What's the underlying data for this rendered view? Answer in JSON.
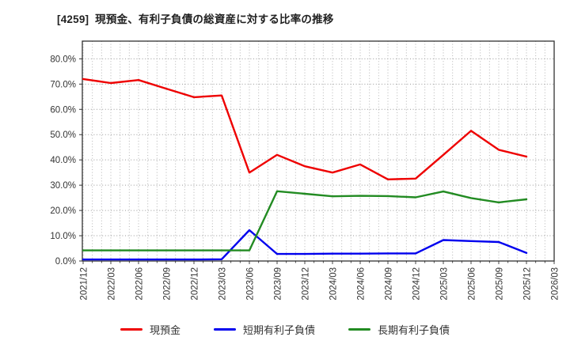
{
  "title": "[4259]  現預金、有利子負債の総資産に対する比率の推移",
  "chart_data": {
    "type": "line",
    "title": "[4259]  現預金、有利子負債の総資産に対する比率の推移",
    "categories": [
      "2021/12",
      "2022/03",
      "2022/06",
      "2022/09",
      "2022/12",
      "2023/03",
      "2023/06",
      "2023/09",
      "2023/12",
      "2024/03",
      "2024/06",
      "2024/09",
      "2024/12",
      "2025/03",
      "2025/06",
      "2025/09",
      "2025/12",
      "2026/03"
    ],
    "series": [
      {
        "name": "現預金",
        "color": "#ee0000",
        "values": [
          72.0,
          70.4,
          71.6,
          68.2,
          64.8,
          65.5,
          35.0,
          42.0,
          37.5,
          35.0,
          38.2,
          32.3,
          32.6,
          42.0,
          51.5,
          44.0,
          41.3
        ]
      },
      {
        "name": "短期有利子負債",
        "color": "#0000ee",
        "values": [
          0.6,
          0.6,
          0.6,
          0.6,
          0.6,
          0.7,
          12.2,
          2.8,
          2.8,
          2.9,
          2.9,
          3.0,
          3.0,
          8.3,
          7.9,
          7.5,
          3.2
        ]
      },
      {
        "name": "長期有利子負債",
        "color": "#228b22",
        "values": [
          4.2,
          4.2,
          4.2,
          4.2,
          4.2,
          4.2,
          4.2,
          27.6,
          26.6,
          25.6,
          25.8,
          25.7,
          25.2,
          27.5,
          24.9,
          23.2,
          24.4
        ]
      }
    ],
    "xlabel": "",
    "ylabel": "",
    "y_ticks": [
      {
        "value": 0,
        "label": "0.0%"
      },
      {
        "value": 10,
        "label": "10.0%"
      },
      {
        "value": 20,
        "label": "20.0%"
      },
      {
        "value": 30,
        "label": "30.0%"
      },
      {
        "value": 40,
        "label": "40.0%"
      },
      {
        "value": 50,
        "label": "50.0%"
      },
      {
        "value": 60,
        "label": "60.0%"
      },
      {
        "value": 70,
        "label": "70.0%"
      },
      {
        "value": 80,
        "label": "80.0%"
      }
    ],
    "ylim": [
      0,
      87
    ],
    "grid": true,
    "minor_x_divisions": 3,
    "legend_position": "bottom",
    "legend_entries": [
      "現預金",
      "短期有利子負債",
      "長期有利子負債"
    ]
  },
  "colors": {
    "frame": "#333333",
    "grid_major": "#999999",
    "grid_minor": "#b3b3b3",
    "tick_text": "#333333",
    "title_text": "#222222"
  }
}
